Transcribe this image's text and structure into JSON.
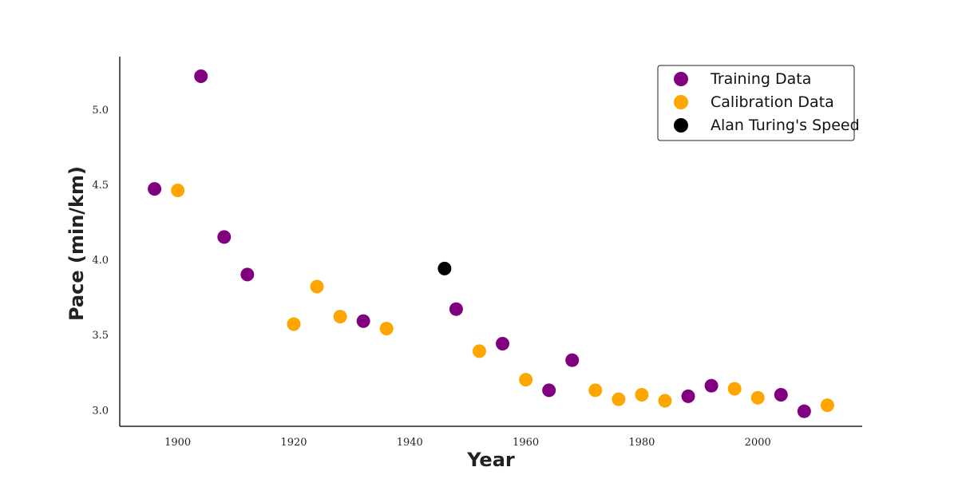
{
  "chart_data": {
    "type": "scatter",
    "xlabel": "Year",
    "ylabel": "Pace (min/km)",
    "xlim": [
      1890,
      2018
    ],
    "ylim": [
      2.89,
      5.35
    ],
    "xticks": [
      1900,
      1920,
      1940,
      1960,
      1980,
      2000
    ],
    "yticks": [
      3.0,
      3.5,
      4.0,
      4.5,
      5.0
    ],
    "xtick_labels": [
      "1900",
      "1920",
      "1940",
      "1960",
      "1980",
      "2000"
    ],
    "ytick_labels": [
      "3.0",
      "3.5",
      "4.0",
      "4.5",
      "5.0"
    ],
    "grid": false,
    "legend_position": "top-right",
    "series": [
      {
        "name": "Training Data",
        "color": "#800080",
        "x": [
          1896,
          1904,
          1908,
          1912,
          1932,
          1948,
          1956,
          1964,
          1968,
          1988,
          1992,
          2004,
          2008
        ],
        "y": [
          4.47,
          5.22,
          4.15,
          3.9,
          3.59,
          3.67,
          3.44,
          3.13,
          3.33,
          3.09,
          3.16,
          3.1,
          2.99
        ]
      },
      {
        "name": "Calibration Data",
        "color": "#ffa500",
        "x": [
          1900,
          1920,
          1924,
          1928,
          1936,
          1952,
          1960,
          1972,
          1976,
          1980,
          1984,
          1996,
          2000,
          2012
        ],
        "y": [
          4.46,
          3.57,
          3.82,
          3.62,
          3.54,
          3.39,
          3.2,
          3.13,
          3.07,
          3.1,
          3.06,
          3.14,
          3.08,
          3.03
        ]
      },
      {
        "name": "Alan Turing's Speed",
        "color": "#000000",
        "x": [
          1946
        ],
        "y": [
          3.94
        ]
      }
    ]
  }
}
